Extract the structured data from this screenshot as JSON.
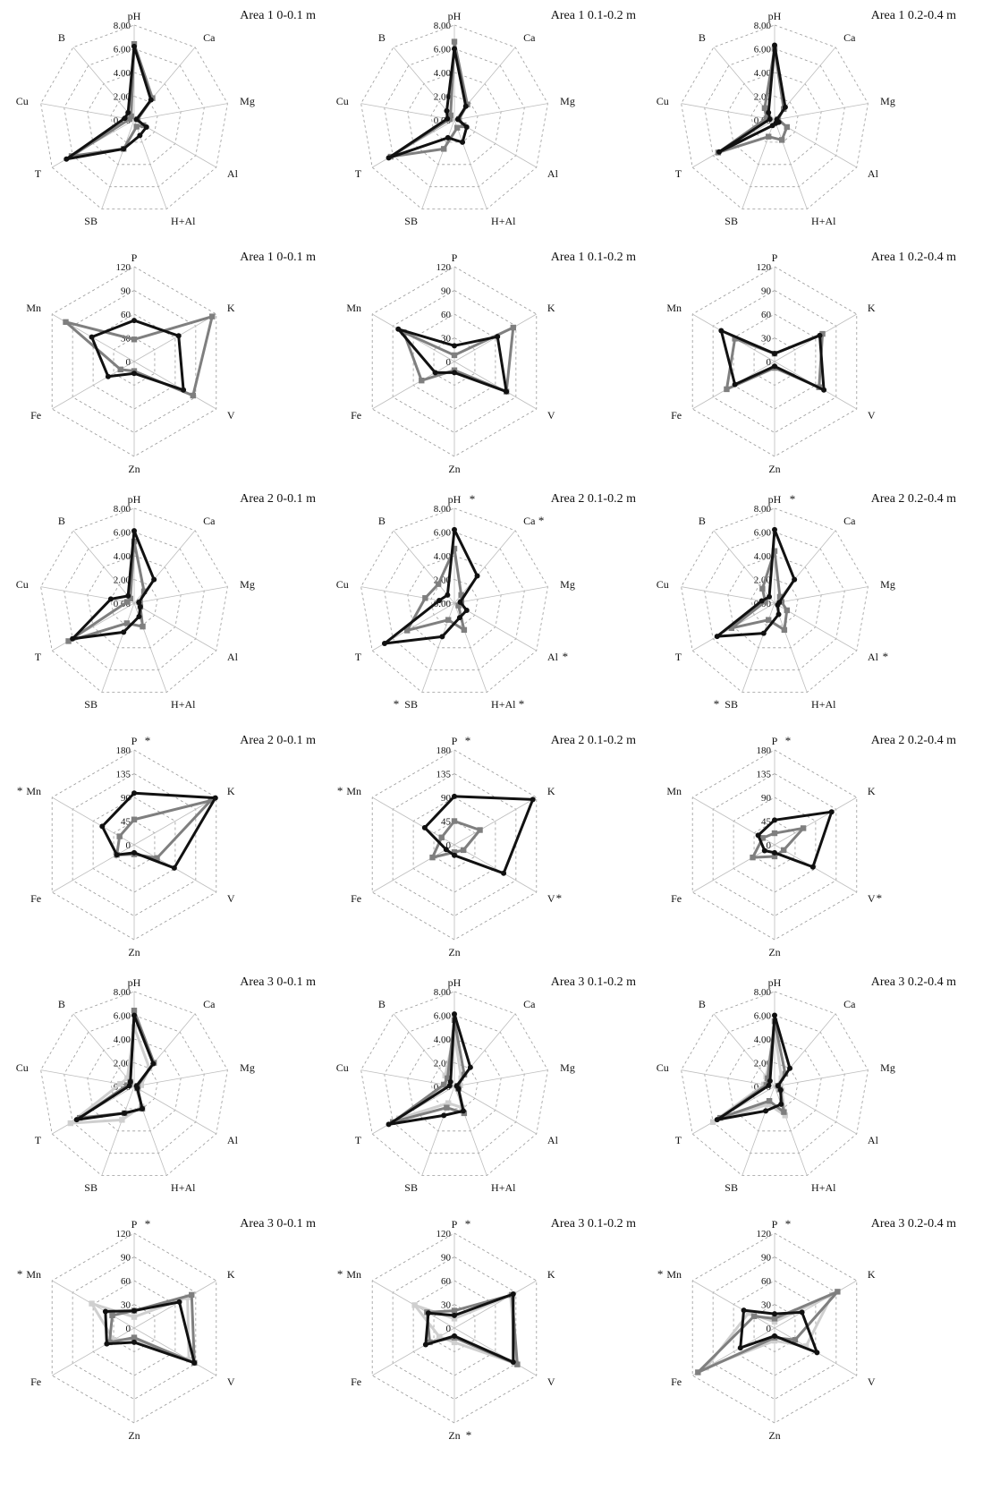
{
  "colors": {
    "black_series": "#111111",
    "gray_series": "#7f7f7f",
    "lightgray_series": "#cfcfcf",
    "grid": "#9a9a9a",
    "spoke": "#bdbdbd"
  },
  "chart_data": [
    {
      "type": "radar",
      "title": "Area 1 0-0.1 m",
      "axes": [
        "pH",
        "Ca",
        "Mg",
        "Al",
        "H+Al",
        "SB",
        "T",
        "Cu",
        "B"
      ],
      "stars": [],
      "ticks": [
        "0.00",
        "2.00",
        "4.00",
        "6.00",
        "8.00"
      ],
      "rmax": 8,
      "series": [
        {
          "color": "black",
          "values": [
            6.2,
            2.2,
            0.2,
            1.2,
            1.4,
            2.6,
            6.6,
            0.8,
            0.8
          ]
        },
        {
          "color": "gray",
          "values": [
            6.4,
            2.4,
            0.3,
            0.9,
            0.6,
            2.6,
            6.1,
            0.4,
            0.4
          ]
        }
      ]
    },
    {
      "type": "radar",
      "title": "Area 1 0.1-0.2 m",
      "axes": [
        "pH",
        "Ca",
        "Mg",
        "Al",
        "H+Al",
        "SB",
        "T",
        "Cu",
        "B"
      ],
      "stars": [],
      "ticks": [
        "0.00",
        "2.00",
        "4.00",
        "6.00",
        "8.00"
      ],
      "rmax": 8,
      "series": [
        {
          "color": "black",
          "values": [
            6.0,
            1.5,
            0.3,
            1.2,
            2.0,
            1.6,
            6.4,
            0.6,
            1.0
          ]
        },
        {
          "color": "gray",
          "values": [
            6.6,
            1.7,
            0.4,
            0.9,
            0.7,
            2.6,
            6.2,
            0.4,
            0.5
          ]
        }
      ]
    },
    {
      "type": "radar",
      "title": "Area 1 0.2-0.4 m",
      "axes": [
        "pH",
        "Ca",
        "Mg",
        "Al",
        "H+Al",
        "SB",
        "T",
        "Cu",
        "B"
      ],
      "stars": [],
      "ticks": [
        "0.00",
        "2.00",
        "4.00",
        "6.00",
        "8.00"
      ],
      "rmax": 8,
      "series": [
        {
          "color": "black",
          "values": [
            6.3,
            1.4,
            0.2,
            0.4,
            0.3,
            0.5,
            5.4,
            0.4,
            0.8
          ]
        },
        {
          "color": "gray",
          "values": [
            6.0,
            1.2,
            0.3,
            1.2,
            1.8,
            1.5,
            5.5,
            0.7,
            1.3
          ]
        }
      ]
    },
    {
      "type": "radar",
      "title": "Area 1 0-0.1 m",
      "axes": [
        "P",
        "K",
        "V",
        "Zn",
        "Fe",
        "Mn"
      ],
      "stars": [],
      "ticks": [
        "0",
        "30",
        "60",
        "90",
        "120"
      ],
      "rmax": 120,
      "series": [
        {
          "color": "black",
          "values": [
            52,
            65,
            72,
            15,
            38,
            62
          ]
        },
        {
          "color": "gray",
          "values": [
            28,
            114,
            86,
            12,
            20,
            100
          ]
        }
      ]
    },
    {
      "type": "radar",
      "title": "Area 1 0.1-0.2 m",
      "axes": [
        "P",
        "K",
        "V",
        "Zn",
        "Fe",
        "Mn"
      ],
      "stars": [],
      "ticks": [
        "0",
        "30",
        "60",
        "90",
        "120"
      ],
      "rmax": 120,
      "series": [
        {
          "color": "black",
          "values": [
            20,
            63,
            76,
            14,
            28,
            82
          ]
        },
        {
          "color": "gray",
          "values": [
            8,
            86,
            76,
            11,
            48,
            74
          ]
        }
      ]
    },
    {
      "type": "radar",
      "title": "Area 1 0.2-0.4 m",
      "axes": [
        "P",
        "K",
        "V",
        "Zn",
        "Fe",
        "Mn"
      ],
      "stars": [],
      "ticks": [
        "0",
        "30",
        "60",
        "90",
        "120"
      ],
      "rmax": 120,
      "series": [
        {
          "color": "black",
          "values": [
            10,
            66,
            72,
            6,
            58,
            78
          ]
        },
        {
          "color": "gray",
          "values": [
            10,
            70,
            65,
            8,
            70,
            58
          ]
        }
      ]
    },
    {
      "type": "radar",
      "title": "Area 2 0-0.1 m",
      "axes": [
        "pH",
        "Ca",
        "Mg",
        "Al",
        "H+Al",
        "SB",
        "T",
        "Cu",
        "B"
      ],
      "stars": [],
      "ticks": [
        "0.00",
        "2.00",
        "4.00",
        "6.00",
        "8.00"
      ],
      "rmax": 8,
      "series": [
        {
          "color": "black",
          "values": [
            6.1,
            2.6,
            0.4,
            0.6,
            1.2,
            2.6,
            6.0,
            2.0,
            0.8
          ]
        },
        {
          "color": "gray",
          "values": [
            5.2,
            1.3,
            0.5,
            0.6,
            2.1,
            1.8,
            6.4,
            0.6,
            0.5
          ]
        }
      ]
    },
    {
      "type": "radar",
      "title": "Area 2 0.1-0.2 m",
      "axes": [
        "pH",
        "Ca",
        "Mg",
        "Al",
        "H+Al",
        "SB",
        "T",
        "Cu",
        "B"
      ],
      "stars": [
        "pH",
        "Ca",
        "Al",
        "H+Al",
        "SB"
      ],
      "ticks": [
        "0.00",
        "2.00",
        "4.00",
        "6.00",
        "8.00"
      ],
      "rmax": 8,
      "series": [
        {
          "color": "black",
          "values": [
            6.2,
            3.0,
            0.5,
            1.2,
            1.3,
            3.0,
            6.8,
            1.3,
            0.9
          ]
        },
        {
          "color": "gray",
          "values": [
            4.6,
            0.9,
            0.6,
            0.4,
            2.4,
            1.5,
            4.6,
            2.5,
            2.1
          ]
        }
      ]
    },
    {
      "type": "radar",
      "title": "Area 2 0.2-0.4 m",
      "axes": [
        "pH",
        "Ca",
        "Mg",
        "Al",
        "H+Al",
        "SB",
        "T",
        "Cu",
        "B"
      ],
      "stars": [
        "pH",
        "Al",
        "SB"
      ],
      "ticks": [
        "0.00",
        "2.00",
        "4.00",
        "6.00",
        "8.00"
      ],
      "rmax": 8,
      "series": [
        {
          "color": "black",
          "values": [
            6.2,
            2.6,
            0.4,
            0.3,
            1.0,
            2.7,
            5.6,
            1.1,
            0.7
          ]
        },
        {
          "color": "gray",
          "values": [
            4.4,
            0.7,
            0.6,
            1.2,
            2.4,
            1.5,
            4.2,
            0.8,
            1.6
          ]
        }
      ]
    },
    {
      "type": "radar",
      "title": "Area 2 0-0.1 m",
      "axes": [
        "P",
        "K",
        "V",
        "Zn",
        "Fe",
        "Mn"
      ],
      "stars": [
        "P",
        "Mn"
      ],
      "ticks": [
        "0",
        "45",
        "90",
        "135",
        "180"
      ],
      "rmax": 180,
      "series": [
        {
          "color": "black",
          "values": [
            98,
            178,
            88,
            15,
            38,
            70
          ]
        },
        {
          "color": "gray",
          "values": [
            48,
            168,
            50,
            18,
            38,
            32
          ]
        }
      ]
    },
    {
      "type": "radar",
      "title": "Area 2 0.1-0.2 m",
      "axes": [
        "P",
        "K",
        "V",
        "Zn",
        "Fe",
        "Mn"
      ],
      "stars": [
        "P",
        "Mn",
        "V"
      ],
      "ticks": [
        "0",
        "45",
        "90",
        "135",
        "180"
      ],
      "rmax": 180,
      "series": [
        {
          "color": "black",
          "values": [
            92,
            172,
            108,
            20,
            18,
            65
          ]
        },
        {
          "color": "gray",
          "values": [
            45,
            56,
            20,
            14,
            48,
            28
          ]
        }
      ]
    },
    {
      "type": "radar",
      "title": "Area 2 0.2-0.4 m",
      "axes": [
        "P",
        "K",
        "V",
        "Zn",
        "Fe",
        "Mn"
      ],
      "stars": [
        "P",
        "V"
      ],
      "ticks": [
        "0",
        "45",
        "90",
        "135",
        "180"
      ],
      "rmax": 180,
      "series": [
        {
          "color": "black",
          "values": [
            47,
            125,
            84,
            15,
            22,
            36
          ]
        },
        {
          "color": "gray",
          "values": [
            22,
            63,
            20,
            22,
            48,
            26
          ]
        }
      ]
    },
    {
      "type": "radar",
      "title": "Area 3 0-0.1 m",
      "axes": [
        "pH",
        "Ca",
        "Mg",
        "Al",
        "H+Al",
        "SB",
        "T",
        "Cu",
        "B"
      ],
      "stars": [],
      "ticks": [
        "0.00",
        "2.00",
        "4.00",
        "6.00",
        "8.00"
      ],
      "rmax": 8,
      "series": [
        {
          "color": "black",
          "values": [
            6.0,
            2.5,
            0.2,
            0.3,
            2.0,
            2.4,
            5.6,
            0.4,
            0.5
          ]
        },
        {
          "color": "gray",
          "values": [
            6.4,
            2.6,
            0.3,
            0.3,
            2.0,
            2.4,
            5.3,
            0.6,
            0.5
          ]
        },
        {
          "color": "lightgray",
          "values": [
            5.0,
            2.0,
            0.6,
            0.4,
            1.8,
            3.0,
            6.2,
            1.2,
            0.9
          ]
        }
      ]
    },
    {
      "type": "radar",
      "title": "Area 3 0.1-0.2 m",
      "axes": [
        "pH",
        "Ca",
        "Mg",
        "Al",
        "H+Al",
        "SB",
        "T",
        "Cu",
        "B"
      ],
      "stars": [],
      "ticks": [
        "0.00",
        "2.00",
        "4.00",
        "6.00",
        "8.00"
      ],
      "rmax": 8,
      "series": [
        {
          "color": "black",
          "values": [
            6.1,
            2.1,
            0.2,
            0.4,
            2.2,
            2.6,
            6.4,
            0.4,
            0.5
          ]
        },
        {
          "color": "gray",
          "values": [
            5.6,
            1.3,
            0.3,
            0.4,
            2.4,
            1.9,
            6.0,
            0.9,
            0.9
          ]
        },
        {
          "color": "lightgray",
          "values": [
            4.5,
            0.9,
            0.5,
            0.3,
            1.9,
            1.5,
            5.4,
            0.7,
            1.2
          ]
        }
      ]
    },
    {
      "type": "radar",
      "title": "Area 3 0.2-0.4 m",
      "axes": [
        "pH",
        "Ca",
        "Mg",
        "Al",
        "H+Al",
        "SB",
        "T",
        "Cu",
        "B"
      ],
      "stars": [],
      "ticks": [
        "0.00",
        "2.00",
        "4.00",
        "6.00",
        "8.00"
      ],
      "rmax": 8,
      "series": [
        {
          "color": "black",
          "values": [
            6.0,
            2.0,
            0.3,
            0.6,
            1.6,
            2.2,
            5.6,
            0.5,
            0.6
          ]
        },
        {
          "color": "gray",
          "values": [
            5.5,
            1.4,
            0.3,
            0.5,
            2.3,
            1.3,
            5.3,
            0.7,
            0.9
          ]
        },
        {
          "color": "lightgray",
          "values": [
            4.8,
            0.9,
            0.5,
            0.7,
            2.6,
            1.6,
            6.0,
            0.9,
            1.1
          ]
        }
      ]
    },
    {
      "type": "radar",
      "title": "Area 3 0-0.1 m",
      "axes": [
        "P",
        "K",
        "V",
        "Zn",
        "Fe",
        "Mn"
      ],
      "stars": [
        "P",
        "Mn"
      ],
      "ticks": [
        "0",
        "30",
        "60",
        "90",
        "120"
      ],
      "rmax": 120,
      "series": [
        {
          "color": "black",
          "values": [
            22,
            66,
            88,
            18,
            40,
            42
          ]
        },
        {
          "color": "gray",
          "values": [
            22,
            84,
            88,
            12,
            36,
            32
          ]
        },
        {
          "color": "lightgray",
          "values": [
            14,
            78,
            80,
            14,
            30,
            62
          ]
        }
      ]
    },
    {
      "type": "radar",
      "title": "Area 3 0.1-0.2 m",
      "axes": [
        "P",
        "K",
        "V",
        "Zn",
        "Fe",
        "Mn"
      ],
      "stars": [
        "P",
        "Mn",
        "Zn"
      ],
      "ticks": [
        "0",
        "30",
        "60",
        "90",
        "120"
      ],
      "rmax": 120,
      "series": [
        {
          "color": "black",
          "values": [
            16,
            86,
            86,
            10,
            42,
            38
          ]
        },
        {
          "color": "gray",
          "values": [
            22,
            84,
            92,
            12,
            36,
            40
          ]
        },
        {
          "color": "lightgray",
          "values": [
            12,
            82,
            90,
            18,
            22,
            58
          ]
        }
      ]
    },
    {
      "type": "radar",
      "title": "Area 3 0.2-0.4 m",
      "axes": [
        "P",
        "K",
        "V",
        "Zn",
        "Fe",
        "Mn"
      ],
      "stars": [
        "P",
        "Mn"
      ],
      "ticks": [
        "0",
        "30",
        "60",
        "90",
        "120"
      ],
      "rmax": 120,
      "series": [
        {
          "color": "black",
          "values": [
            18,
            40,
            62,
            10,
            50,
            45
          ]
        },
        {
          "color": "gray",
          "values": [
            12,
            92,
            30,
            12,
            112,
            30
          ]
        },
        {
          "color": "lightgray",
          "values": [
            8,
            84,
            46,
            16,
            100,
            38
          ]
        }
      ]
    }
  ]
}
